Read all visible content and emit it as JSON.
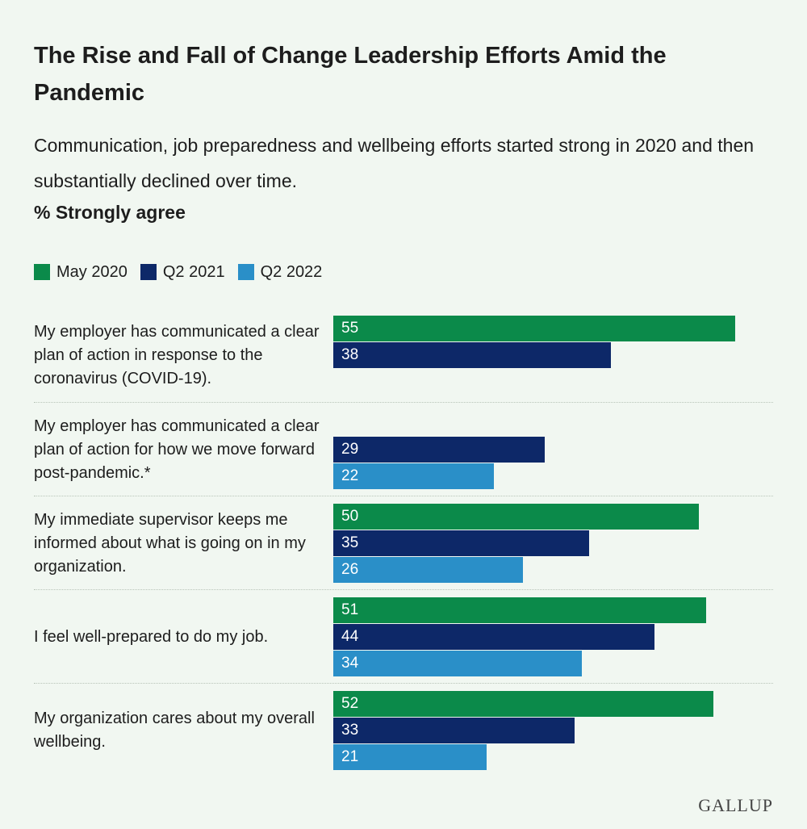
{
  "header": {
    "title": "The Rise and Fall of Change Leadership Efforts Amid the Pandemic",
    "subtitle": "Communication, job preparedness and wellbeing efforts started strong in 2020 and then substantially declined over time.",
    "measure": "% Strongly agree"
  },
  "logo": "GALLUP",
  "chart_data": {
    "type": "bar",
    "orientation": "horizontal",
    "title": "The Rise and Fall of Change Leadership Efforts Amid the Pandemic",
    "subtitle": "Communication, job preparedness and wellbeing efforts started strong in 2020 and then substantially declined over time.",
    "ylabel": "% Strongly agree",
    "xlim": [
      0,
      55
    ],
    "grid": false,
    "legend_position": "top-left",
    "categories": [
      "My employer has communicated a clear plan of action in response to the coronavirus (COVID-19).",
      "My employer has communicated a clear plan of action for how we move forward post-pandemic.*",
      "My immediate supervisor keeps me informed about what is going on in my organization.",
      "I feel well-prepared to do my job.",
      "My organization cares about my overall wellbeing."
    ],
    "series": [
      {
        "name": "May 2020",
        "color": "#0b8a4a",
        "values": [
          55,
          null,
          50,
          51,
          52
        ]
      },
      {
        "name": "Q2 2021",
        "color": "#0d2868",
        "values": [
          38,
          29,
          35,
          44,
          33
        ]
      },
      {
        "name": "Q2 2022",
        "color": "#2a8fc8",
        "values": [
          null,
          22,
          26,
          34,
          21
        ]
      }
    ]
  }
}
